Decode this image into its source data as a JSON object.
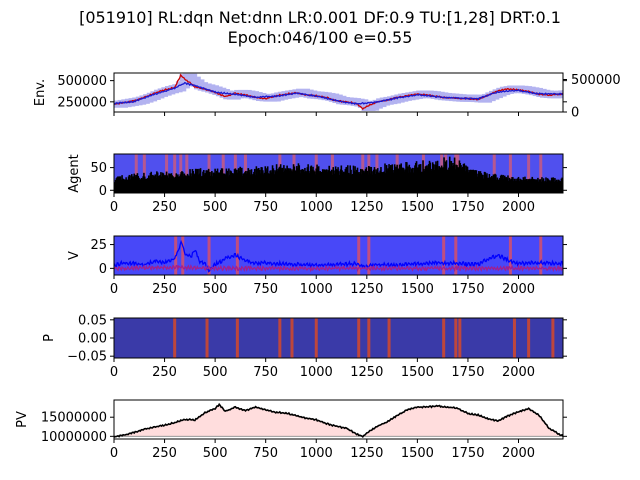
{
  "title_line1": "[051910] RL:dqn Net:dnn LR:0.001 DF:0.9 TU:[1,28] DRT:0.1",
  "title_line2": "Epoch:046/100 e=0.55",
  "chart_data": [
    {
      "id": "env",
      "type": "line",
      "ylabel": "Env.",
      "xlim": [
        0,
        2220
      ],
      "ylim": [
        130000,
        590000
      ],
      "yticks": [
        250000,
        500000
      ],
      "ytick_labels": [
        "250000",
        "500000"
      ],
      "right_ylim": [
        0,
        600000
      ],
      "right_yticks": [
        0,
        500000
      ],
      "right_ytick_labels": [
        "0",
        "500000"
      ],
      "show_xtick_labels": false,
      "series": [
        {
          "role": "price",
          "color": "#cc0000",
          "points": [
            [
              0,
              220000
            ],
            [
              50,
              240000
            ],
            [
              100,
              260000
            ],
            [
              150,
              300000
            ],
            [
              200,
              350000
            ],
            [
              250,
              390000
            ],
            [
              300,
              420000
            ],
            [
              330,
              560000
            ],
            [
              350,
              520000
            ],
            [
              400,
              430000
            ],
            [
              450,
              400000
            ],
            [
              500,
              360000
            ],
            [
              550,
              310000
            ],
            [
              600,
              350000
            ],
            [
              650,
              330000
            ],
            [
              700,
              300000
            ],
            [
              750,
              290000
            ],
            [
              800,
              320000
            ],
            [
              850,
              340000
            ],
            [
              900,
              360000
            ],
            [
              950,
              330000
            ],
            [
              1000,
              320000
            ],
            [
              1050,
              300000
            ],
            [
              1100,
              260000
            ],
            [
              1150,
              250000
            ],
            [
              1200,
              230000
            ],
            [
              1230,
              170000
            ],
            [
              1260,
              210000
            ],
            [
              1300,
              250000
            ],
            [
              1350,
              270000
            ],
            [
              1400,
              300000
            ],
            [
              1450,
              320000
            ],
            [
              1500,
              340000
            ],
            [
              1550,
              330000
            ],
            [
              1600,
              310000
            ],
            [
              1650,
              300000
            ],
            [
              1700,
              290000
            ],
            [
              1750,
              290000
            ],
            [
              1800,
              280000
            ],
            [
              1850,
              330000
            ],
            [
              1900,
              380000
            ],
            [
              1950,
              400000
            ],
            [
              2000,
              390000
            ],
            [
              2050,
              370000
            ],
            [
              2100,
              340000
            ],
            [
              2150,
              330000
            ],
            [
              2220,
              345000
            ]
          ]
        },
        {
          "role": "ma",
          "color": "#1a1ad0",
          "points": [
            [
              0,
              230000
            ],
            [
              100,
              255000
            ],
            [
              200,
              340000
            ],
            [
              300,
              410000
            ],
            [
              350,
              470000
            ],
            [
              400,
              440000
            ],
            [
              500,
              365000
            ],
            [
              600,
              340000
            ],
            [
              700,
              305000
            ],
            [
              800,
              315000
            ],
            [
              900,
              350000
            ],
            [
              1000,
              320000
            ],
            [
              1100,
              265000
            ],
            [
              1200,
              225000
            ],
            [
              1300,
              245000
            ],
            [
              1400,
              295000
            ],
            [
              1500,
              335000
            ],
            [
              1600,
              310000
            ],
            [
              1700,
              292000
            ],
            [
              1800,
              285000
            ],
            [
              1900,
              370000
            ],
            [
              2000,
              385000
            ],
            [
              2100,
              345000
            ],
            [
              2220,
              340000
            ]
          ]
        }
      ],
      "fill_color": "#b3b3f0"
    },
    {
      "id": "agent",
      "type": "heatmap",
      "ylabel": "Agent",
      "xlim": [
        0,
        2220
      ],
      "ylim": [
        -6,
        80
      ],
      "yticks": [
        0,
        50
      ],
      "ytick_labels": [
        "0",
        "50"
      ],
      "xticks": [
        0,
        250,
        500,
        750,
        1000,
        1250,
        1500,
        1750,
        2000
      ],
      "xtick_labels": [
        "0",
        "250",
        "500",
        "750",
        "1000",
        "1250",
        "1500",
        "1750",
        "2000"
      ],
      "background_color": "#5050ee",
      "stripe_color": "#d05a78",
      "stripe_x": [
        110,
        150,
        260,
        300,
        330,
        360,
        470,
        540,
        600,
        650,
        820,
        890,
        1000,
        1080,
        1230,
        1260,
        1300,
        1400,
        1530,
        1620,
        1640,
        1690,
        1700,
        1880,
        1960,
        2050,
        2110
      ],
      "bar_color": "#000000",
      "envelope": [
        [
          0,
          30
        ],
        [
          50,
          35
        ],
        [
          100,
          38
        ],
        [
          150,
          40
        ],
        [
          200,
          42
        ],
        [
          300,
          45
        ],
        [
          400,
          50
        ],
        [
          500,
          48
        ],
        [
          600,
          52
        ],
        [
          700,
          55
        ],
        [
          800,
          58
        ],
        [
          900,
          60
        ],
        [
          1000,
          58
        ],
        [
          1100,
          56
        ],
        [
          1200,
          55
        ],
        [
          1300,
          58
        ],
        [
          1400,
          62
        ],
        [
          1500,
          65
        ],
        [
          1600,
          70
        ],
        [
          1650,
          75
        ],
        [
          1700,
          72
        ],
        [
          1750,
          50
        ],
        [
          1800,
          45
        ],
        [
          1900,
          35
        ],
        [
          2000,
          30
        ],
        [
          2100,
          30
        ],
        [
          2220,
          28
        ]
      ]
    },
    {
      "id": "v",
      "type": "line",
      "ylabel": "V",
      "xlim": [
        0,
        2220
      ],
      "ylim": [
        -7,
        34
      ],
      "yticks": [
        0,
        25
      ],
      "ytick_labels": [
        "0",
        "25"
      ],
      "xticks": [
        0,
        250,
        500,
        750,
        1000,
        1250,
        1500,
        1750,
        2000
      ],
      "xtick_labels": [
        "0",
        "250",
        "500",
        "750",
        "1000",
        "1250",
        "1500",
        "1750",
        "2000"
      ],
      "background_color": "#4848f8",
      "stripe_color": "#e05060",
      "stripe_x": [
        305,
        340,
        470,
        610,
        1210,
        1260,
        1630,
        1690,
        1960,
        2110
      ],
      "series": [
        {
          "name": "",
          "color": "#0000ff",
          "points": [
            [
              0,
              3
            ],
            [
              50,
              6
            ],
            [
              100,
              5
            ],
            [
              150,
              4
            ],
            [
              200,
              7
            ],
            [
              250,
              6
            ],
            [
              300,
              10
            ],
            [
              320,
              20
            ],
            [
              335,
              28
            ],
            [
              350,
              15
            ],
            [
              380,
              12
            ],
            [
              400,
              20
            ],
            [
              420,
              8
            ],
            [
              450,
              5
            ],
            [
              470,
              -3
            ],
            [
              500,
              4
            ],
            [
              550,
              10
            ],
            [
              600,
              14
            ],
            [
              650,
              8
            ],
            [
              700,
              5
            ],
            [
              750,
              6
            ],
            [
              800,
              5
            ],
            [
              900,
              4
            ],
            [
              1000,
              3
            ],
            [
              1100,
              4
            ],
            [
              1200,
              5
            ],
            [
              1230,
              2
            ],
            [
              1300,
              4
            ],
            [
              1400,
              3
            ],
            [
              1500,
              5
            ],
            [
              1600,
              6
            ],
            [
              1700,
              5
            ],
            [
              1800,
              4
            ],
            [
              1850,
              10
            ],
            [
              1900,
              14
            ],
            [
              1950,
              8
            ],
            [
              2000,
              5
            ],
            [
              2100,
              6
            ],
            [
              2220,
              5
            ]
          ]
        },
        {
          "name": "",
          "color": "#a02090",
          "points": [
            [
              0,
              0
            ],
            [
              300,
              1
            ],
            [
              500,
              0
            ],
            [
              1000,
              0
            ],
            [
              1500,
              0
            ],
            [
              2000,
              0
            ],
            [
              2220,
              0
            ]
          ]
        }
      ]
    },
    {
      "id": "p",
      "type": "heatmap",
      "ylabel": "P",
      "xlim": [
        0,
        2220
      ],
      "ylim": [
        -0.055,
        0.055
      ],
      "yticks": [
        -0.05,
        0.0,
        0.05
      ],
      "ytick_labels": [
        "−0.05",
        "0.00",
        "0.05"
      ],
      "xticks": [
        0,
        250,
        500,
        750,
        1000,
        1250,
        1500,
        1750,
        2000
      ],
      "xtick_labels": [
        "0",
        "250",
        "500",
        "750",
        "1000",
        "1250",
        "1500",
        "1750",
        "2000"
      ],
      "background_color": "#3a3aa8",
      "stripe_color": "#e04a20",
      "stripe_x": [
        300,
        460,
        610,
        820,
        880,
        1000,
        1210,
        1260,
        1360,
        1630,
        1690,
        1710,
        1980,
        2050,
        2170
      ]
    },
    {
      "id": "pv",
      "type": "line",
      "ylabel": "PV",
      "xlim": [
        0,
        2220
      ],
      "ylim": [
        9300000,
        19500000
      ],
      "yticks": [
        10000000,
        15000000
      ],
      "ytick_labels": [
        "10000000",
        "15000000"
      ],
      "xticks": [
        0,
        250,
        500,
        750,
        1000,
        1250,
        1500,
        1750,
        2000
      ],
      "xtick_labels": [
        "0",
        "250",
        "500",
        "750",
        "1000",
        "1250",
        "1500",
        "1750",
        "2000"
      ],
      "baseline": 10000000,
      "fill_color": "#ffdddd",
      "series": [
        {
          "name": "",
          "color": "#000000",
          "points": [
            [
              0,
              9800000
            ],
            [
              50,
              10300000
            ],
            [
              100,
              11000000
            ],
            [
              150,
              11800000
            ],
            [
              200,
              12400000
            ],
            [
              250,
              12900000
            ],
            [
              300,
              13600000
            ],
            [
              350,
              14400000
            ],
            [
              400,
              14300000
            ],
            [
              450,
              16200000
            ],
            [
              500,
              17200000
            ],
            [
              520,
              18300000
            ],
            [
              550,
              16500000
            ],
            [
              600,
              17600000
            ],
            [
              650,
              16700000
            ],
            [
              700,
              17600000
            ],
            [
              750,
              17000000
            ],
            [
              800,
              16300000
            ],
            [
              850,
              16100000
            ],
            [
              900,
              15500000
            ],
            [
              950,
              14700000
            ],
            [
              1000,
              14300000
            ],
            [
              1050,
              13300000
            ],
            [
              1100,
              12600000
            ],
            [
              1150,
              12100000
            ],
            [
              1200,
              10600000
            ],
            [
              1230,
              10000000
            ],
            [
              1260,
              11300000
            ],
            [
              1300,
              12600000
            ],
            [
              1350,
              13800000
            ],
            [
              1400,
              15400000
            ],
            [
              1450,
              16900000
            ],
            [
              1500,
              17600000
            ],
            [
              1550,
              17700000
            ],
            [
              1600,
              17900000
            ],
            [
              1650,
              17700000
            ],
            [
              1700,
              17300000
            ],
            [
              1750,
              16000000
            ],
            [
              1800,
              15600000
            ],
            [
              1850,
              14600000
            ],
            [
              1900,
              14000000
            ],
            [
              1950,
              15400000
            ],
            [
              2000,
              16400000
            ],
            [
              2050,
              17200000
            ],
            [
              2100,
              15600000
            ],
            [
              2150,
              12200000
            ],
            [
              2200,
              10600000
            ],
            [
              2220,
              10200000
            ]
          ]
        }
      ]
    }
  ]
}
